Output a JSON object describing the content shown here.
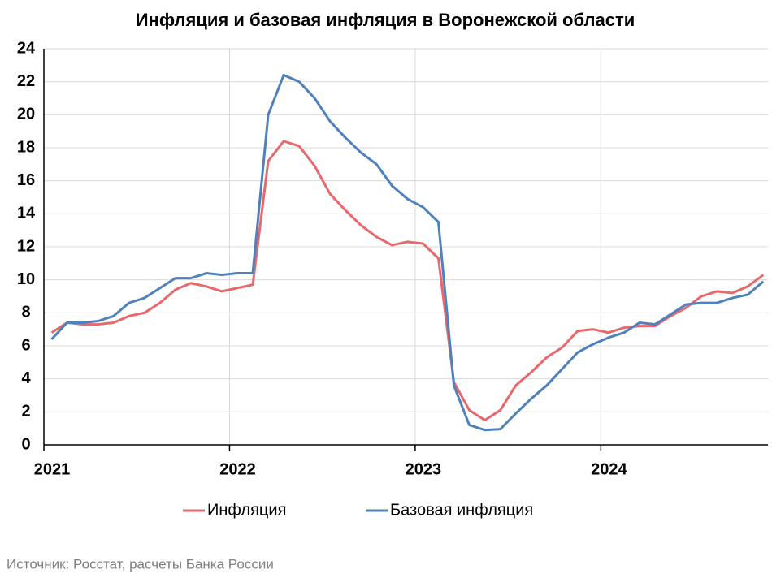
{
  "chart_data": {
    "type": "line",
    "title": "Инфляция и базовая инфляция в Воронежской области",
    "source": "Источник: Росстат, расчеты Банка России",
    "x": [
      "2021-01",
      "2021-02",
      "2021-03",
      "2021-04",
      "2021-05",
      "2021-06",
      "2021-07",
      "2021-08",
      "2021-09",
      "2021-10",
      "2021-11",
      "2021-12",
      "2022-01",
      "2022-02",
      "2022-03",
      "2022-04",
      "2022-05",
      "2022-06",
      "2022-07",
      "2022-08",
      "2022-09",
      "2022-10",
      "2022-11",
      "2022-12",
      "2023-01",
      "2023-02",
      "2023-03",
      "2023-04",
      "2023-05",
      "2023-06",
      "2023-07",
      "2023-08",
      "2023-09",
      "2023-10",
      "2023-11",
      "2023-12",
      "2024-01",
      "2024-02",
      "2024-03",
      "2024-04",
      "2024-05",
      "2024-06",
      "2024-07",
      "2024-08",
      "2024-09",
      "2024-10",
      "2024-11"
    ],
    "series": [
      {
        "name": "Инфляция",
        "color": "#e8686b",
        "values": [
          6.8,
          7.4,
          7.3,
          7.3,
          7.4,
          7.8,
          8.0,
          8.6,
          9.4,
          9.8,
          9.6,
          9.3,
          9.5,
          9.7,
          17.2,
          18.4,
          18.1,
          16.9,
          15.2,
          14.2,
          13.3,
          12.6,
          12.1,
          12.3,
          12.2,
          11.3,
          3.8,
          2.1,
          1.5,
          2.1,
          3.6,
          4.4,
          5.3,
          5.9,
          6.9,
          7.0,
          6.8,
          7.1,
          7.2,
          7.2,
          7.8,
          8.3,
          9.0,
          9.3,
          9.2,
          9.6,
          10.3
        ]
      },
      {
        "name": "Базовая инфляция",
        "color": "#4f81bd",
        "values": [
          6.4,
          7.4,
          7.4,
          7.5,
          7.8,
          8.6,
          8.9,
          9.5,
          10.1,
          10.1,
          10.4,
          10.3,
          10.4,
          10.4,
          20.0,
          22.4,
          22.0,
          21.0,
          19.6,
          18.6,
          17.7,
          17.0,
          15.7,
          14.9,
          14.4,
          13.5,
          3.6,
          1.2,
          0.9,
          0.95,
          1.9,
          2.8,
          3.6,
          4.6,
          5.6,
          6.1,
          6.5,
          6.8,
          7.4,
          7.3,
          7.9,
          8.5,
          8.6,
          8.6,
          8.9,
          9.1,
          9.9
        ]
      }
    ],
    "xlim": [
      2021,
      2024.9
    ],
    "xticks": [
      2021,
      2022,
      2023,
      2024
    ],
    "ylim": [
      0,
      24
    ],
    "yticks": [
      0,
      2,
      4,
      6,
      8,
      10,
      12,
      14,
      16,
      18,
      20,
      22,
      24
    ],
    "grid": true,
    "legend": "bottom"
  }
}
